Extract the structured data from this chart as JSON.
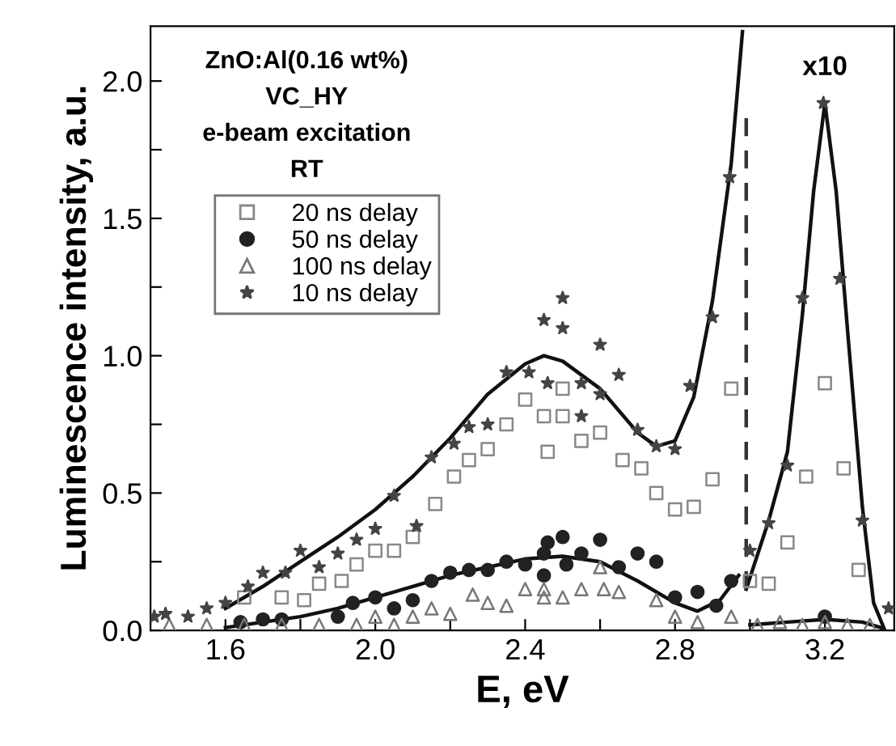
{
  "chart_data": {
    "type": "scatter",
    "xlabel": "E, eV",
    "ylabel": "Luminescence intensity, a.u.",
    "xlim": [
      1.4,
      3.385
    ],
    "ylim": [
      0,
      2.2
    ],
    "xticks": [
      1.6,
      {
        "value": 1.8,
        "label": null
      },
      {
        "value": 2,
        "label": "2.0"
      },
      {
        "value": 2.2,
        "label": null
      },
      2.4,
      {
        "value": 2.6,
        "label": null
      },
      2.8,
      {
        "value": 3.0,
        "label": null
      },
      3.2
    ],
    "yticks": [
      {
        "value": 0,
        "label": "0.0"
      },
      {
        "value": 0.25,
        "label": null
      },
      0.5,
      {
        "value": 0.75,
        "label": null
      },
      {
        "value": 1,
        "label": "1.0"
      },
      {
        "value": 1.25,
        "label": null
      },
      1.5,
      {
        "value": 1.75,
        "label": null
      },
      {
        "value": 2,
        "label": "2.0"
      }
    ],
    "grid": false,
    "legend": "top left",
    "annotations": [
      "ZnO:Al(0.16 wt%)",
      "VC_HY",
      "e-beam excitation",
      "RT",
      {
        "text": "x10",
        "x": 3.2,
        "y": 1.92
      }
    ],
    "series": [
      {
        "name": "20 ns delay",
        "color": "#888888",
        "marker": "square",
        "x": [
          1.65,
          1.75,
          1.81,
          1.85,
          1.91,
          1.95,
          2.0,
          2.05,
          2.1,
          2.16,
          2.21,
          2.25,
          2.3,
          2.35,
          2.4,
          2.45,
          2.46,
          2.5,
          2.5,
          2.55,
          2.6,
          2.66,
          2.71,
          2.75,
          2.8,
          2.85,
          2.9,
          2.95,
          3.0,
          3.05,
          3.1,
          3.15,
          3.2,
          3.25,
          3.29
        ],
        "values": [
          0.12,
          0.12,
          0.11,
          0.17,
          0.18,
          0.24,
          0.29,
          0.29,
          0.34,
          0.46,
          0.56,
          0.62,
          0.66,
          0.75,
          0.84,
          0.78,
          0.65,
          0.78,
          0.88,
          0.69,
          0.72,
          0.62,
          0.59,
          0.5,
          0.44,
          0.45,
          0.55,
          0.88,
          0.18,
          0.17,
          0.32,
          0.56,
          0.9,
          0.59,
          0.22
        ]
      },
      {
        "name": "50 ns delay",
        "color": "#222222",
        "marker": "circle",
        "x": [
          1.64,
          1.7,
          1.75,
          1.9,
          1.94,
          2.0,
          2.05,
          2.1,
          2.15,
          2.2,
          2.25,
          2.3,
          2.35,
          2.4,
          2.45,
          2.45,
          2.46,
          2.5,
          2.51,
          2.55,
          2.6,
          2.65,
          2.7,
          2.75,
          2.8,
          2.86,
          2.91,
          2.95,
          3.2
        ],
        "values": [
          0.03,
          0.04,
          0.04,
          0.05,
          0.1,
          0.12,
          0.08,
          0.11,
          0.18,
          0.21,
          0.22,
          0.22,
          0.25,
          0.24,
          0.28,
          0.2,
          0.32,
          0.34,
          0.24,
          0.28,
          0.33,
          0.23,
          0.28,
          0.25,
          0.12,
          0.14,
          0.09,
          0.18,
          0.05
        ]
      },
      {
        "name": "100 ns delay",
        "color": "#777777",
        "marker": "triangle",
        "x": [
          1.45,
          1.55,
          1.65,
          1.75,
          1.85,
          1.95,
          2.0,
          2.05,
          2.1,
          2.15,
          2.2,
          2.26,
          2.3,
          2.35,
          2.4,
          2.45,
          2.45,
          2.5,
          2.55,
          2.6,
          2.61,
          2.65,
          2.75,
          2.8,
          2.86,
          2.95,
          3.02,
          3.08,
          3.14,
          3.2,
          3.26,
          3.32
        ],
        "values": [
          0.02,
          0.02,
          0.02,
          0.02,
          0.02,
          0.02,
          0.05,
          0.02,
          0.05,
          0.08,
          0.06,
          0.13,
          0.1,
          0.09,
          0.15,
          0.15,
          0.12,
          0.12,
          0.15,
          0.23,
          0.15,
          0.14,
          0.11,
          0.05,
          0.03,
          0.05,
          0.02,
          0.03,
          0.02,
          0.03,
          0.02,
          0.02
        ]
      },
      {
        "name": "10 ns delay",
        "color": "#444444",
        "marker": "star",
        "x": [
          1.41,
          1.44,
          1.5,
          1.55,
          1.6,
          1.66,
          1.7,
          1.76,
          1.8,
          1.85,
          1.9,
          1.95,
          2.0,
          2.05,
          2.11,
          2.15,
          2.21,
          2.25,
          2.3,
          2.35,
          2.41,
          2.45,
          2.46,
          2.5,
          2.5,
          2.55,
          2.55,
          2.6,
          2.6,
          2.65,
          2.7,
          2.75,
          2.8,
          2.84,
          2.9,
          2.946,
          3.0,
          3.05,
          3.1,
          3.14,
          3.196,
          3.24,
          3.3,
          3.37
        ],
        "values": [
          0.05,
          0.06,
          0.05,
          0.08,
          0.1,
          0.16,
          0.21,
          0.21,
          0.29,
          0.23,
          0.28,
          0.33,
          0.37,
          0.49,
          0.38,
          0.63,
          0.68,
          0.74,
          0.75,
          0.94,
          0.94,
          1.13,
          0.9,
          1.21,
          1.1,
          0.9,
          0.78,
          1.04,
          0.86,
          0.93,
          0.73,
          0.67,
          0.66,
          0.89,
          1.14,
          1.65,
          0.29,
          0.39,
          0.6,
          1.21,
          1.92,
          1.28,
          0.4,
          0.08
        ]
      },
      {
        "type": "line",
        "color": "#111111",
        "marker": "none",
        "line_style": "solid",
        "x": [
          1.6,
          1.7,
          1.8,
          1.9,
          2.0,
          2.1,
          2.2,
          2.3,
          2.4,
          2.45,
          2.5,
          2.6,
          2.7,
          2.75,
          2.8,
          2.85,
          2.9,
          2.95,
          2.98
        ],
        "values": [
          0.08,
          0.16,
          0.25,
          0.34,
          0.44,
          0.56,
          0.7,
          0.86,
          0.97,
          1.0,
          0.98,
          0.88,
          0.72,
          0.67,
          0.69,
          0.85,
          1.2,
          1.7,
          2.18
        ]
      },
      {
        "type": "line",
        "color": "#111111",
        "marker": "none",
        "line_style": "solid",
        "x": [
          2.99,
          3.05,
          3.1,
          3.14,
          3.17,
          3.2,
          3.23,
          3.26,
          3.3,
          3.33,
          3.36
        ],
        "values": [
          0.15,
          0.4,
          0.65,
          1.15,
          1.6,
          1.92,
          1.6,
          1.1,
          0.45,
          0.1,
          0.0
        ]
      },
      {
        "type": "line",
        "color": "#111111",
        "marker": "none",
        "line_style": "solid",
        "x": [
          1.6,
          1.7,
          1.8,
          1.9,
          2.0,
          2.1,
          2.2,
          2.3,
          2.4,
          2.5,
          2.6,
          2.7,
          2.8,
          2.86,
          2.92,
          2.97
        ],
        "values": [
          0.01,
          0.03,
          0.05,
          0.08,
          0.12,
          0.16,
          0.2,
          0.23,
          0.26,
          0.27,
          0.25,
          0.18,
          0.1,
          0.07,
          0.11,
          0.2
        ]
      },
      {
        "type": "line",
        "color": "#111111",
        "marker": "none",
        "line_style": "solid",
        "x": [
          3.0,
          3.1,
          3.2,
          3.3,
          3.35
        ],
        "values": [
          0.02,
          0.03,
          0.04,
          0.03,
          0.01
        ]
      },
      {
        "type": "line",
        "color": "#333333",
        "marker": "none",
        "line_style": "dashed",
        "x": [
          2.99,
          2.99
        ],
        "values": [
          0.15,
          1.88
        ]
      }
    ]
  }
}
